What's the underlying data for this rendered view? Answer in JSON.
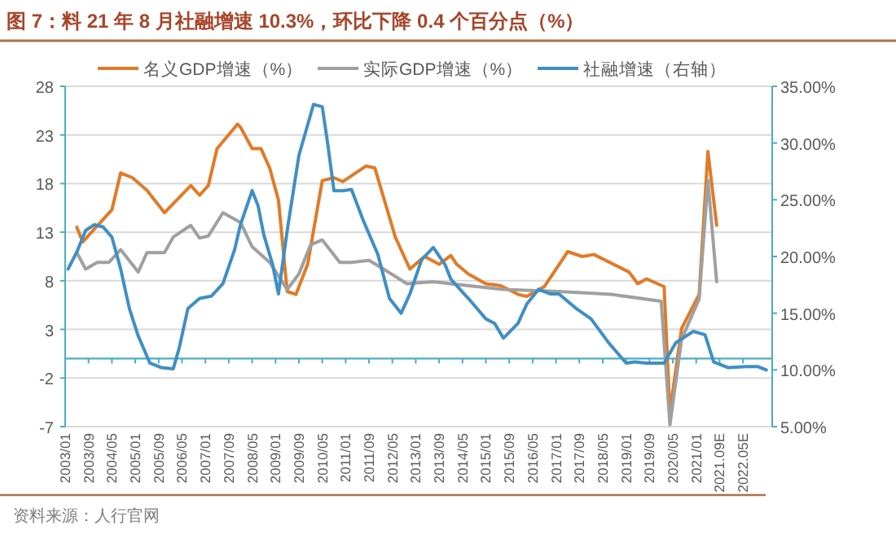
{
  "chart_data": {
    "type": "line",
    "title": "图 7：料 21 年 8 月社融增速 10.3%，环比下降 0.4 个百分点（%）",
    "annotations": [
      "资料来源：人行官网"
    ],
    "xlim": [
      "2003-01",
      "2023-03"
    ],
    "xticks": [
      {
        "value": "2003-01",
        "label": "2003/01"
      },
      {
        "value": "2003-09",
        "label": "2003/09"
      },
      {
        "value": "2004-05",
        "label": "2004/05"
      },
      {
        "value": "2005-01",
        "label": "2005/01"
      },
      {
        "value": "2005-09",
        "label": "2005/09"
      },
      {
        "value": "2006-05",
        "label": "2006/05"
      },
      {
        "value": "2007-01",
        "label": "2007/01"
      },
      {
        "value": "2007-09",
        "label": "2007/09"
      },
      {
        "value": "2008-05",
        "label": "2008/05"
      },
      {
        "value": "2009-01",
        "label": "2009/01"
      },
      {
        "value": "2009-09",
        "label": "2009/09"
      },
      {
        "value": "2010-05",
        "label": "2010/05"
      },
      {
        "value": "2011-01",
        "label": "2011/01"
      },
      {
        "value": "2011-09",
        "label": "2011/09"
      },
      {
        "value": "2012-05",
        "label": "2012/05"
      },
      {
        "value": "2013-01",
        "label": "2013/01"
      },
      {
        "value": "2013-09",
        "label": "2013/09"
      },
      {
        "value": "2014-05",
        "label": "2014/05"
      },
      {
        "value": "2015-01",
        "label": "2015/01"
      },
      {
        "value": "2015-09",
        "label": "2015/09"
      },
      {
        "value": "2016-05",
        "label": "2016/05"
      },
      {
        "value": "2017-01",
        "label": "2017/01"
      },
      {
        "value": "2017-09",
        "label": "2017/09"
      },
      {
        "value": "2018-05",
        "label": "2018/05"
      },
      {
        "value": "2019-01",
        "label": "2019/01"
      },
      {
        "value": "2019-09",
        "label": "2019/09"
      },
      {
        "value": "2020-05",
        "label": "2020/05"
      },
      {
        "value": "2021-01",
        "label": "2021/01"
      },
      {
        "value": "2021-09",
        "label": "2021.09E"
      },
      {
        "value": "2022-05",
        "label": "2022.05E"
      }
    ],
    "ylim": [
      -7,
      28
    ],
    "yticks": [
      -7,
      -2,
      3,
      8,
      13,
      18,
      23,
      28
    ],
    "y2lim": [
      5,
      35
    ],
    "y2ticks": [
      {
        "value": 5,
        "label": "5.00%"
      },
      {
        "value": 10,
        "label": "10.00%"
      },
      {
        "value": 15,
        "label": "15.00%"
      },
      {
        "value": 20,
        "label": "20.00%"
      },
      {
        "value": 25,
        "label": "25.00%"
      },
      {
        "value": 30,
        "label": "30.00%"
      },
      {
        "value": 35,
        "label": "35.00%"
      }
    ],
    "grid": "y",
    "legend": "top",
    "ref_lines": [
      {
        "axis": "y",
        "value": 0,
        "color": "#4bacc6"
      }
    ],
    "line_style": "solid",
    "series": [
      {
        "name": "名义GDP增速（%）",
        "color": "#e07b28",
        "x": [
          "2003-05",
          "2003-07",
          "2004-05",
          "2004-08",
          "2004-12",
          "2005-05",
          "2005-11",
          "2006-08",
          "2006-11",
          "2007-02",
          "2007-05",
          "2007-12",
          "2008-01",
          "2008-05",
          "2008-08",
          "2008-11",
          "2009-02",
          "2009-05",
          "2009-08",
          "2009-12",
          "2010-05",
          "2010-09",
          "2010-12",
          "2011-08",
          "2011-11",
          "2012-06",
          "2012-11",
          "2013-04",
          "2013-09",
          "2014-01",
          "2014-03",
          "2014-07",
          "2015-01",
          "2015-06",
          "2015-12",
          "2016-03",
          "2016-09",
          "2017-05",
          "2017-10",
          "2018-02",
          "2019-02",
          "2019-05",
          "2019-08",
          "2020-02",
          "2020-04",
          "2020-08",
          "2021-02",
          "2021-05",
          "2021-08"
        ],
        "values": [
          13.5,
          12.0,
          15.3,
          19.1,
          18.6,
          17.3,
          15.0,
          17.8,
          16.8,
          17.8,
          21.6,
          24.1,
          23.8,
          21.6,
          21.6,
          19.6,
          16.3,
          6.9,
          6.6,
          9.7,
          18.3,
          18.6,
          18.2,
          19.8,
          19.6,
          12.5,
          9.2,
          10.5,
          9.7,
          10.6,
          9.7,
          8.7,
          7.7,
          7.5,
          6.6,
          6.4,
          7.4,
          11.0,
          10.5,
          10.7,
          8.9,
          7.7,
          8.2,
          7.4,
          -5.5,
          3.1,
          6.6,
          21.3,
          13.7
        ]
      },
      {
        "name": "实际GDP增速（%）",
        "color": "#a0a0a0",
        "x": [
          "2003-05",
          "2003-08",
          "2003-12",
          "2004-04",
          "2004-08",
          "2005-02",
          "2005-05",
          "2005-11",
          "2006-02",
          "2006-08",
          "2006-11",
          "2007-02",
          "2007-07",
          "2008-01",
          "2008-05",
          "2008-11",
          "2009-05",
          "2009-09",
          "2010-01",
          "2010-05",
          "2010-11",
          "2011-03",
          "2011-09",
          "2012-02",
          "2012-10",
          "2013-07",
          "2014-01",
          "2015-07",
          "2017-02",
          "2018-08",
          "2020-01",
          "2020-04",
          "2020-08",
          "2021-02",
          "2021-05",
          "2021-08"
        ],
        "values": [
          10.9,
          9.2,
          9.9,
          9.9,
          11.2,
          8.9,
          10.9,
          10.9,
          12.5,
          13.7,
          12.4,
          12.6,
          15.0,
          14.0,
          11.5,
          9.9,
          7.1,
          8.7,
          11.7,
          12.2,
          9.9,
          9.9,
          10.1,
          9.2,
          7.7,
          7.9,
          7.7,
          7.1,
          6.9,
          6.6,
          5.9,
          -6.8,
          2.0,
          6.1,
          18.3,
          7.9
        ]
      },
      {
        "name": "社融增速（右轴）",
        "color": "#3f8fc4",
        "axis": "y2",
        "x": [
          "2003-02",
          "2003-05",
          "2003-08",
          "2003-11",
          "2004-02",
          "2004-05",
          "2004-08",
          "2004-11",
          "2005-02",
          "2005-06",
          "2005-10",
          "2006-02",
          "2006-04",
          "2006-07",
          "2006-11",
          "2007-03",
          "2007-07",
          "2007-11",
          "2008-01",
          "2008-05",
          "2008-07",
          "2008-09",
          "2008-12",
          "2009-02",
          "2009-05",
          "2009-09",
          "2010-02",
          "2010-05",
          "2010-07",
          "2010-09",
          "2010-12",
          "2011-03",
          "2011-07",
          "2011-12",
          "2012-04",
          "2012-08",
          "2012-11",
          "2013-03",
          "2013-07",
          "2013-11",
          "2014-01",
          "2014-07",
          "2015-01",
          "2015-04",
          "2015-07",
          "2015-12",
          "2016-03",
          "2016-07",
          "2016-11",
          "2017-02",
          "2017-08",
          "2018-01",
          "2018-07",
          "2019-01",
          "2019-04",
          "2019-08",
          "2020-02",
          "2020-06",
          "2020-12",
          "2021-04",
          "2021-07",
          "2021-12",
          "2022-06",
          "2022-10",
          "2023-01"
        ],
        "values": [
          18.9,
          20.4,
          22.3,
          22.8,
          22.6,
          21.7,
          18.9,
          15.4,
          13.0,
          10.6,
          10.2,
          10.1,
          11.9,
          15.4,
          16.3,
          16.5,
          17.6,
          20.6,
          22.8,
          25.8,
          24.5,
          21.9,
          19.3,
          16.7,
          22.3,
          28.9,
          33.4,
          33.2,
          29.7,
          25.8,
          25.8,
          25.9,
          23.2,
          20.2,
          16.3,
          15.0,
          16.7,
          19.7,
          20.8,
          19.3,
          18.0,
          16.3,
          14.5,
          14.1,
          12.8,
          14.1,
          15.8,
          17.1,
          16.7,
          16.7,
          15.4,
          14.5,
          12.4,
          10.6,
          10.7,
          10.6,
          10.6,
          12.4,
          13.4,
          13.1,
          10.7,
          10.2,
          10.3,
          10.3,
          10.0
        ]
      }
    ]
  }
}
